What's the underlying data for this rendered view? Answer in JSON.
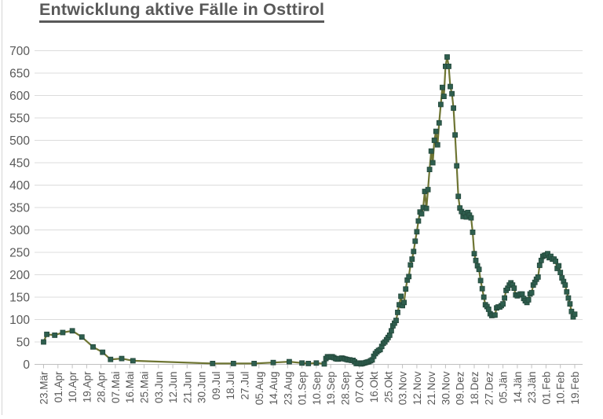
{
  "chart_data": {
    "type": "line",
    "title": "Entwicklung aktive Fälle in Osttirol",
    "xlabel": "",
    "ylabel": "",
    "ylim": [
      0,
      700
    ],
    "ytick_step": 50,
    "grid": "horizontal",
    "legend": "none",
    "marker": "square",
    "x_encoding": "day_index_from_first_tick",
    "days_per_tick": 9,
    "x_tick_labels": [
      "23.Mär",
      "01.Apr",
      "10.Apr",
      "19.Apr",
      "28.Apr",
      "07.Mai",
      "16.Mai",
      "25.Mai",
      "03.Jun",
      "12.Jun",
      "21.Jun",
      "30.Jun",
      "09.Jul",
      "18.Jul",
      "27.Jul",
      "05.Aug",
      "14.Aug",
      "23.Aug",
      "01.Sep",
      "10.Sep",
      "19.Sep",
      "28.Sep",
      "07.Okt",
      "16.Okt",
      "25.Okt",
      "03.Nov",
      "12.Nov",
      "21.Nov",
      "30.Nov",
      "09.Dez",
      "18.Dez",
      "27.Dez",
      "05.Jän",
      "14.Jän",
      "23.Jän",
      "01.Feb",
      "10.Feb",
      "19.Feb"
    ],
    "colors": {
      "line": "#6e7533",
      "marker": "#2e5e4e",
      "marker_edge": "#24483b",
      "grid": "#dcdcdc",
      "axis": "#c0c0c0",
      "text": "#595959",
      "title": "#595959"
    },
    "series": [
      {
        "points": [
          [
            0,
            50
          ],
          [
            2,
            67
          ],
          [
            7,
            65
          ],
          [
            12,
            71
          ],
          [
            18,
            75
          ],
          [
            24,
            61
          ],
          [
            31,
            39
          ],
          [
            37,
            27
          ],
          [
            42,
            11
          ],
          [
            49,
            13
          ],
          [
            56,
            8
          ],
          [
            106,
            2
          ],
          [
            119,
            2
          ],
          [
            132,
            2
          ],
          [
            144,
            4
          ],
          [
            154,
            6
          ],
          [
            162,
            3
          ],
          [
            166,
            2
          ],
          [
            171,
            3
          ],
          [
            176,
            1
          ],
          [
            177,
            13
          ],
          [
            178,
            17
          ],
          [
            179,
            16
          ],
          [
            180,
            17
          ],
          [
            181,
            17
          ],
          [
            182,
            15
          ],
          [
            183,
            13
          ],
          [
            184,
            12
          ],
          [
            185,
            12
          ],
          [
            186,
            13
          ],
          [
            187,
            14
          ],
          [
            188,
            13
          ],
          [
            189,
            12
          ],
          [
            190,
            11
          ],
          [
            191,
            10
          ],
          [
            192,
            10
          ],
          [
            193,
            9
          ],
          [
            194,
            9
          ],
          [
            195,
            6
          ],
          [
            196,
            2
          ],
          [
            197,
            2
          ],
          [
            198,
            3
          ],
          [
            199,
            1
          ],
          [
            200,
            2
          ],
          [
            201,
            3
          ],
          [
            202,
            4
          ],
          [
            203,
            5
          ],
          [
            204,
            6
          ],
          [
            205,
            8
          ],
          [
            206,
            10
          ],
          [
            207,
            18
          ],
          [
            208,
            24
          ],
          [
            209,
            28
          ],
          [
            210,
            31
          ],
          [
            211,
            33
          ],
          [
            212,
            40
          ],
          [
            213,
            47
          ],
          [
            214,
            50
          ],
          [
            215,
            55
          ],
          [
            216,
            60
          ],
          [
            217,
            65
          ],
          [
            218,
            75
          ],
          [
            219,
            86
          ],
          [
            220,
            92
          ],
          [
            221,
            98
          ],
          [
            222,
            116
          ],
          [
            223,
            133
          ],
          [
            224,
            152
          ],
          [
            225,
            131
          ],
          [
            226,
            138
          ],
          [
            227,
            168
          ],
          [
            228,
            188
          ],
          [
            229,
            196
          ],
          [
            230,
            222
          ],
          [
            231,
            235
          ],
          [
            232,
            252
          ],
          [
            233,
            275
          ],
          [
            234,
            296
          ],
          [
            235,
            320
          ],
          [
            236,
            340
          ],
          [
            237,
            336
          ],
          [
            238,
            350
          ],
          [
            239,
            386
          ],
          [
            240,
            348
          ],
          [
            241,
            390
          ],
          [
            242,
            435
          ],
          [
            243,
            476
          ],
          [
            244,
            450
          ],
          [
            245,
            500
          ],
          [
            246,
            520
          ],
          [
            247,
            490
          ],
          [
            248,
            539
          ],
          [
            249,
            580
          ],
          [
            250,
            618
          ],
          [
            251,
            598
          ],
          [
            252,
            665
          ],
          [
            253,
            686
          ],
          [
            254,
            665
          ],
          [
            255,
            620
          ],
          [
            256,
            604
          ],
          [
            257,
            572
          ],
          [
            258,
            512
          ],
          [
            259,
            443
          ],
          [
            260,
            375
          ],
          [
            261,
            349
          ],
          [
            262,
            341
          ],
          [
            263,
            330
          ],
          [
            264,
            337
          ],
          [
            265,
            329
          ],
          [
            266,
            339
          ],
          [
            267,
            333
          ],
          [
            268,
            327
          ],
          [
            269,
            295
          ],
          [
            270,
            247
          ],
          [
            271,
            232
          ],
          [
            272,
            220
          ],
          [
            273,
            212
          ],
          [
            274,
            187
          ],
          [
            275,
            169
          ],
          [
            276,
            150
          ],
          [
            277,
            133
          ],
          [
            278,
            129
          ],
          [
            279,
            123
          ],
          [
            280,
            113
          ],
          [
            281,
            109
          ],
          [
            282,
            110
          ],
          [
            283,
            110
          ],
          [
            284,
            126
          ],
          [
            285,
            128
          ],
          [
            286,
            128
          ],
          [
            287,
            131
          ],
          [
            288,
            135
          ],
          [
            289,
            148
          ],
          [
            290,
            165
          ],
          [
            291,
            170
          ],
          [
            292,
            177
          ],
          [
            293,
            182
          ],
          [
            294,
            177
          ],
          [
            295,
            170
          ],
          [
            296,
            155
          ],
          [
            297,
            153
          ],
          [
            298,
            155
          ],
          [
            299,
            157
          ],
          [
            300,
            157
          ],
          [
            301,
            147
          ],
          [
            302,
            142
          ],
          [
            303,
            138
          ],
          [
            304,
            144
          ],
          [
            305,
            157
          ],
          [
            306,
            160
          ],
          [
            307,
            177
          ],
          [
            308,
            183
          ],
          [
            309,
            190
          ],
          [
            310,
            195
          ],
          [
            311,
            221
          ],
          [
            312,
            232
          ],
          [
            313,
            241
          ],
          [
            314,
            243
          ],
          [
            315,
            244
          ],
          [
            316,
            247
          ],
          [
            317,
            238
          ],
          [
            318,
            241
          ],
          [
            319,
            235
          ],
          [
            320,
            235
          ],
          [
            321,
            230
          ],
          [
            322,
            214
          ],
          [
            323,
            220
          ],
          [
            324,
            205
          ],
          [
            325,
            193
          ],
          [
            326,
            185
          ],
          [
            327,
            177
          ],
          [
            328,
            162
          ],
          [
            329,
            148
          ],
          [
            330,
            135
          ],
          [
            331,
            118
          ],
          [
            332,
            106
          ],
          [
            333,
            112
          ]
        ]
      }
    ]
  }
}
